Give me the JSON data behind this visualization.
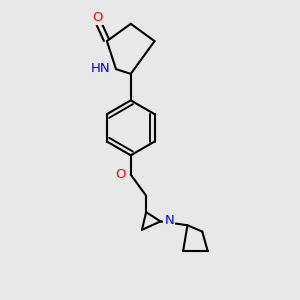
{
  "background_color": "#e8e8e8",
  "bond_color": "#000000",
  "nitrogen_color": "#0000ff",
  "oxygen_color": "#ff0000",
  "bond_width": 1.5,
  "font_size_atoms": 9.5,
  "fig_width": 3.0,
  "fig_height": 3.0,
  "dpi": 100,
  "xlim": [
    -0.55,
    1.05
  ],
  "ylim": [
    -1.55,
    1.55
  ]
}
